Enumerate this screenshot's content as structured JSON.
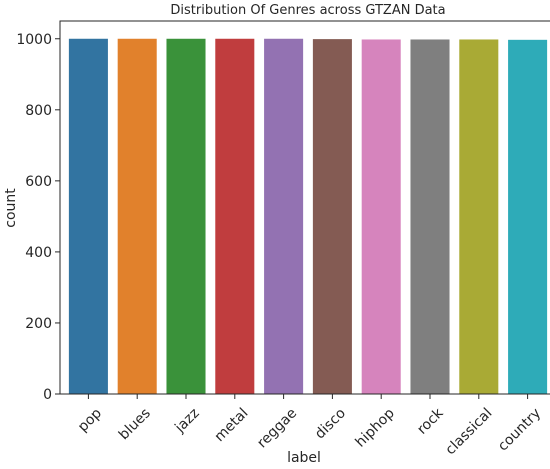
{
  "chart_data": {
    "type": "bar",
    "title": "Distribution Of Genres across GTZAN Data",
    "xlabel": "label",
    "ylabel": "count",
    "categories": [
      "pop",
      "blues",
      "jazz",
      "metal",
      "reggae",
      "disco",
      "hiphop",
      "rock",
      "classical",
      "country"
    ],
    "values": [
      1000,
      1000,
      1000,
      1000,
      1000,
      999,
      998,
      998,
      998,
      997
    ],
    "colors": [
      "#3274a1",
      "#e1812c",
      "#3a923a",
      "#c03d3e",
      "#9372b2",
      "#845b53",
      "#d684bd",
      "#7f7f7f",
      "#a9aa35",
      "#2eabb8"
    ],
    "ylim": [
      0,
      1050
    ],
    "yticks": [
      0,
      200,
      400,
      600,
      800,
      1000
    ],
    "grid": false,
    "legend": "none"
  }
}
